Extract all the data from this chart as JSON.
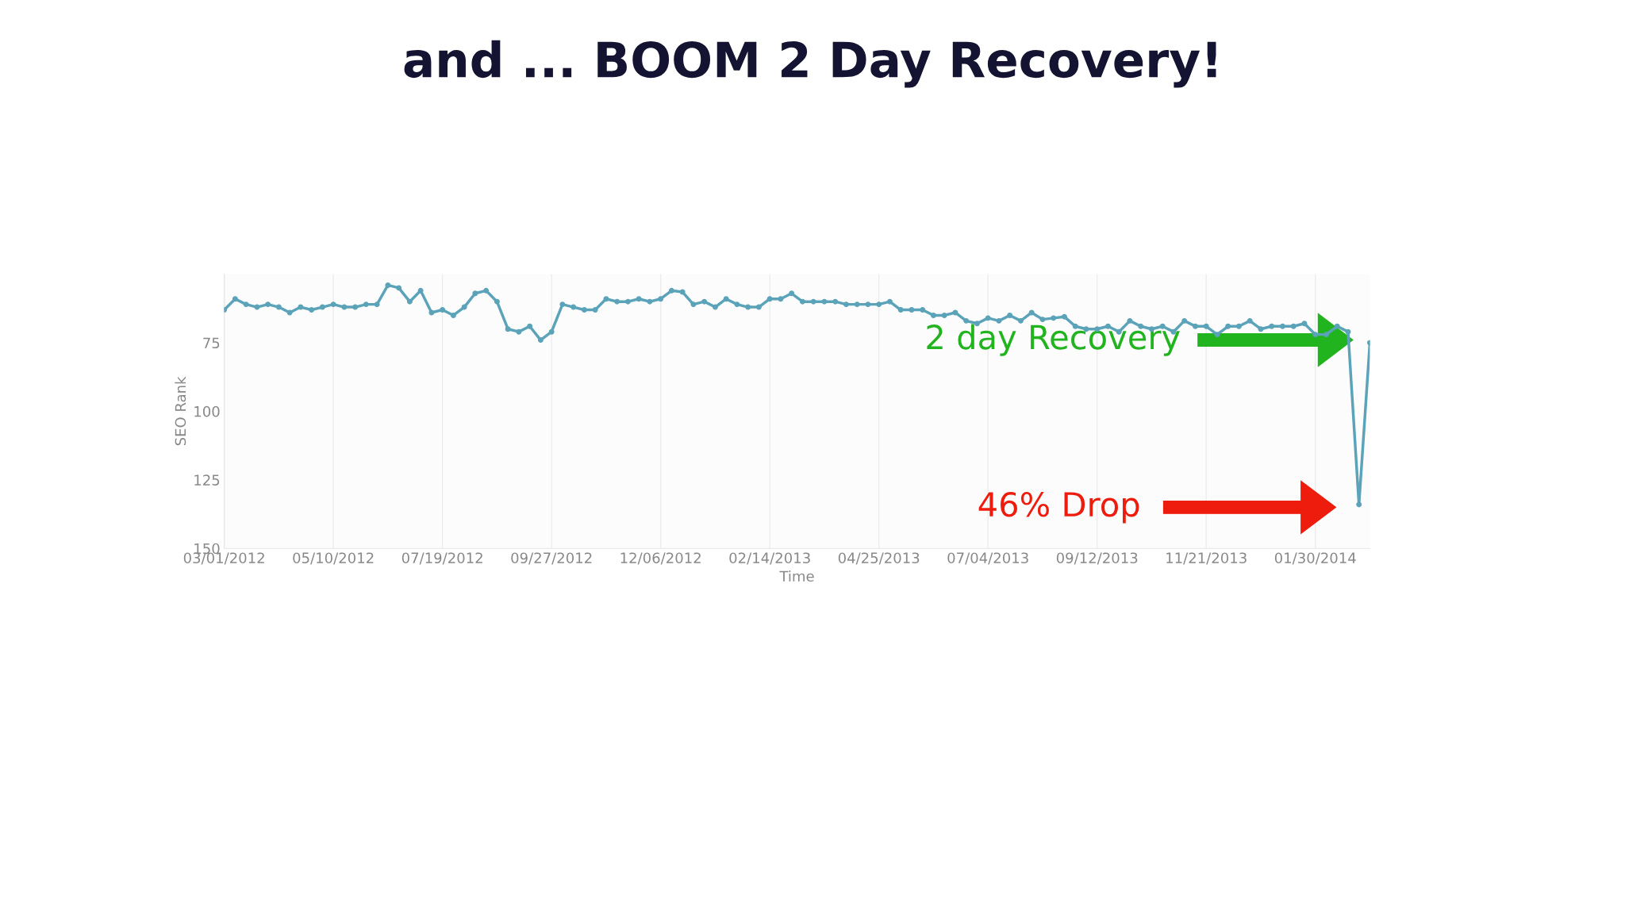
{
  "chart_data": {
    "type": "line",
    "title": "and ... BOOM 2 Day Recovery!",
    "xlabel": "Time",
    "ylabel": "SEO Rank",
    "x": [
      "2012-03-01",
      "2012-03-08",
      "2012-03-15",
      "2012-03-22",
      "2012-03-29",
      "2012-04-05",
      "2012-04-12",
      "2012-04-19",
      "2012-04-26",
      "2012-05-03",
      "2012-05-10",
      "2012-05-17",
      "2012-05-24",
      "2012-05-31",
      "2012-06-07",
      "2012-06-14",
      "2012-06-21",
      "2012-06-28",
      "2012-07-05",
      "2012-07-12",
      "2012-07-19",
      "2012-07-26",
      "2012-08-02",
      "2012-08-09",
      "2012-08-16",
      "2012-08-23",
      "2012-08-30",
      "2012-09-06",
      "2012-09-13",
      "2012-09-20",
      "2012-09-27",
      "2012-10-04",
      "2012-10-11",
      "2012-10-18",
      "2012-10-25",
      "2012-11-01",
      "2012-11-08",
      "2012-11-15",
      "2012-11-22",
      "2012-11-29",
      "2012-12-06",
      "2012-12-13",
      "2012-12-20",
      "2012-12-27",
      "2013-01-03",
      "2013-01-10",
      "2013-01-17",
      "2013-01-24",
      "2013-01-31",
      "2013-02-07",
      "2013-02-14",
      "2013-02-21",
      "2013-02-28",
      "2013-03-07",
      "2013-03-14",
      "2013-03-21",
      "2013-03-28",
      "2013-04-04",
      "2013-04-11",
      "2013-04-18",
      "2013-04-25",
      "2013-05-02",
      "2013-05-09",
      "2013-05-16",
      "2013-05-23",
      "2013-05-30",
      "2013-06-06",
      "2013-06-13",
      "2013-06-20",
      "2013-06-27",
      "2013-07-04",
      "2013-07-11",
      "2013-07-18",
      "2013-07-25",
      "2013-08-01",
      "2013-08-08",
      "2013-08-15",
      "2013-08-22",
      "2013-08-29",
      "2013-09-05",
      "2013-09-12",
      "2013-09-19",
      "2013-09-26",
      "2013-10-03",
      "2013-10-10",
      "2013-10-17",
      "2013-10-24",
      "2013-10-31",
      "2013-11-07",
      "2013-11-14",
      "2013-11-21",
      "2013-11-28",
      "2013-12-05",
      "2013-12-12",
      "2013-12-19",
      "2013-12-26",
      "2014-01-02",
      "2014-01-09",
      "2014-01-16",
      "2014-01-23",
      "2014-01-30",
      "2014-02-06",
      "2014-02-13",
      "2014-02-20",
      "2014-02-27",
      "2014-03-06"
    ],
    "series": [
      {
        "color": "#5ba3b8",
        "values": [
          63,
          59,
          61,
          62,
          61,
          62,
          64,
          62,
          63,
          62,
          61,
          62,
          62,
          61,
          61,
          54,
          55,
          60,
          56,
          64,
          63,
          65,
          62,
          57,
          56,
          60,
          70,
          71,
          69,
          74,
          71,
          61,
          62,
          63,
          63,
          59,
          60,
          60,
          59,
          60,
          59,
          56,
          56.5,
          61,
          60,
          62,
          59,
          61,
          62,
          62,
          59,
          59,
          57,
          60,
          60,
          60,
          60,
          61,
          61,
          61,
          61,
          60,
          63,
          63,
          63,
          65,
          65,
          64,
          67,
          68,
          66,
          67,
          65,
          67,
          64,
          66.5,
          66,
          65.5,
          69,
          70,
          70,
          69,
          71,
          67,
          69,
          70,
          69,
          71,
          67,
          69,
          69,
          72,
          69,
          69,
          67,
          70,
          69,
          69,
          69,
          68,
          72,
          72,
          69,
          71,
          134,
          75
        ]
      }
    ],
    "xlim": [
      "2012-03-01",
      "2014-03-06"
    ],
    "xticks": [
      {
        "value": "2012-03-01",
        "label": "03/01/2012"
      },
      {
        "value": "2012-05-10",
        "label": "05/10/2012"
      },
      {
        "value": "2012-07-19",
        "label": "07/19/2012"
      },
      {
        "value": "2012-09-27",
        "label": "09/27/2012"
      },
      {
        "value": "2012-12-06",
        "label": "12/06/2012"
      },
      {
        "value": "2013-02-14",
        "label": "02/14/2013"
      },
      {
        "value": "2013-04-25",
        "label": "04/25/2013"
      },
      {
        "value": "2013-07-04",
        "label": "07/04/2013"
      },
      {
        "value": "2013-09-12",
        "label": "09/12/2013"
      },
      {
        "value": "2013-11-21",
        "label": "11/21/2013"
      },
      {
        "value": "2014-01-30",
        "label": "01/30/2014"
      }
    ],
    "ylim": [
      150,
      50
    ],
    "yticks": [
      75,
      100,
      125,
      150
    ],
    "grid": "x",
    "marker": "circle",
    "line_style": "solid",
    "annotations": [
      "2 day Recovery",
      "46% Drop"
    ]
  }
}
